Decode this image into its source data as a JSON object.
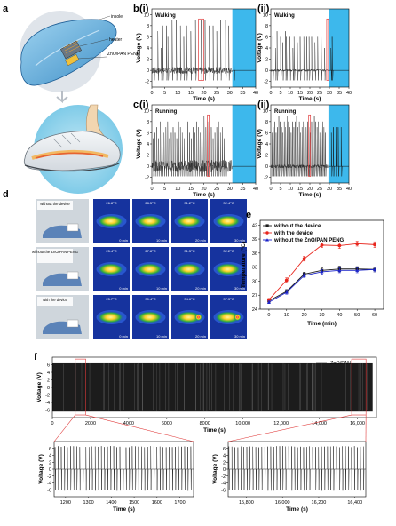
{
  "panels": {
    "a": {
      "label": "a",
      "insole": "insole",
      "heater": "heater",
      "peng": "ZnO/PAN PENG"
    },
    "b": {
      "label": "b",
      "sub1": "(i)",
      "sub2": "(ii)",
      "mode": "Walking"
    },
    "c": {
      "label": "c",
      "sub1": "(i)",
      "sub2": "(ii)",
      "mode": "Running"
    },
    "d": {
      "label": "d",
      "rows": [
        "without the device",
        "without the ZnO/PAN PENG",
        "with the device"
      ],
      "temps": [
        [
          "26.8°C",
          "28.5°C",
          "31.2°C",
          "32.4°C"
        ],
        [
          "25.4°C",
          "27.8°C",
          "31.5°C",
          "32.2°C"
        ],
        [
          "25.7°C",
          "30.4°C",
          "34.6°C",
          "37.3°C"
        ]
      ],
      "times": [
        "0 min",
        "10 min",
        "20 min",
        "30 min"
      ]
    },
    "e": {
      "label": "e"
    },
    "f": {
      "label": "f"
    }
  },
  "chart_data": [
    {
      "id": "b_i",
      "type": "line",
      "title": "Walking",
      "xlabel": "Time (s)",
      "ylabel": "Voltage (V)",
      "xlim": [
        0,
        40
      ],
      "ylim": [
        -3,
        11
      ],
      "xticks": [
        "0",
        "5",
        "10",
        "15",
        "20",
        "25",
        "30",
        "35",
        "40"
      ],
      "yticks": [
        "-2",
        "0",
        "2",
        "4",
        "6",
        "8",
        "10"
      ],
      "peaks": [
        0.8,
        2.3,
        3.6,
        4.2,
        5.6,
        6.2,
        7.8,
        9.4,
        11.0,
        12.3,
        13.4,
        15.0,
        16.8,
        19.0,
        20.5,
        22.1,
        23.6,
        25.0,
        26.5,
        28.4,
        29.6,
        31.6
      ],
      "peak_heights": [
        6,
        7,
        4,
        8,
        8,
        6,
        9,
        9,
        8,
        6,
        8,
        7,
        9,
        9,
        9,
        8,
        8,
        7,
        9,
        9,
        8,
        4
      ],
      "highlight_x": [
        18,
        20
      ],
      "shaded_x": [
        31,
        40
      ],
      "baseline": 0,
      "noise": 1.2
    },
    {
      "id": "b_ii",
      "type": "line",
      "title": "Walking",
      "xlabel": "Time (s)",
      "ylabel": "Voltage (V)",
      "xlim": [
        0,
        40
      ],
      "ylim": [
        -3,
        11
      ],
      "xticks": [
        "0",
        "5",
        "10",
        "15",
        "20",
        "25",
        "30",
        "35",
        "40"
      ],
      "yticks": [
        "-2",
        "0",
        "2",
        "4",
        "6",
        "8",
        "10"
      ],
      "peaks": [
        1.0,
        2.4,
        3.2,
        5.0,
        6.1,
        7.5,
        8.0,
        9.8,
        11.3,
        11.9,
        13.6,
        15.0,
        16.9,
        18.4,
        19.6,
        20.9,
        22.6,
        24.0,
        25.8,
        27.5,
        30.8,
        31.4
      ],
      "peak_heights": [
        6,
        4,
        7,
        6,
        5,
        7,
        6,
        6,
        4,
        6,
        5,
        6,
        6,
        6,
        6,
        6,
        5,
        6,
        6,
        4,
        4,
        6
      ],
      "highlight_x": [
        28.6,
        29.2
      ],
      "shaded_x": [
        30,
        40
      ],
      "baseline": 0,
      "noise": 0.4
    },
    {
      "id": "c_i",
      "type": "line",
      "title": "Running",
      "xlabel": "Time (s)",
      "ylabel": "Voltage (V)",
      "xlim": [
        0,
        40
      ],
      "ylim": [
        -3,
        11
      ],
      "xticks": [
        "0",
        "5",
        "10",
        "15",
        "20",
        "25",
        "30",
        "35",
        "40"
      ],
      "yticks": [
        "-2",
        "0",
        "2",
        "4",
        "6",
        "8",
        "10"
      ],
      "peaks": [
        0.5,
        1.2,
        1.9,
        2.6,
        3.3,
        4.0,
        4.7,
        5.4,
        6.1,
        6.8,
        7.5,
        8.2,
        8.9,
        9.6,
        10.3,
        11.0,
        11.7,
        12.4,
        13.1,
        13.8,
        14.5,
        15.2,
        15.9,
        16.6,
        17.3,
        18.0,
        18.7,
        19.4,
        20.1,
        20.8,
        21.5,
        22.2,
        22.9,
        23.6,
        24.3,
        25.0,
        25.7,
        26.4,
        27.1,
        27.8,
        28.5
      ],
      "peak_heights": [
        5,
        6,
        7,
        5,
        8,
        4,
        6,
        7,
        8,
        5,
        6,
        7,
        6,
        5,
        8,
        7,
        6,
        5,
        7,
        8,
        6,
        5,
        7,
        6,
        8,
        7,
        6,
        5,
        9,
        7,
        8,
        6,
        7,
        5,
        6,
        7,
        8,
        6,
        7,
        5,
        6
      ],
      "highlight_x": [
        21.4,
        22.0
      ],
      "shaded_x": [
        31,
        40
      ],
      "baseline": 0,
      "noise": 2.2
    },
    {
      "id": "c_ii",
      "type": "line",
      "title": "Running",
      "xlabel": "Time (s)",
      "ylabel": "Voltage (V)",
      "xlim": [
        0,
        40
      ],
      "ylim": [
        -3,
        11
      ],
      "xticks": [
        "0",
        "5",
        "10",
        "15",
        "20",
        "25",
        "30",
        "35",
        "40"
      ],
      "yticks": [
        "-2",
        "0",
        "2",
        "4",
        "6",
        "8",
        "10"
      ],
      "peaks": [
        0.6,
        1.3,
        2.0,
        2.7,
        3.4,
        4.1,
        4.8,
        5.5,
        6.2,
        6.9,
        7.6,
        8.3,
        9.0,
        9.7,
        10.4,
        11.1,
        11.8,
        12.5,
        13.2,
        13.9,
        14.6,
        15.3,
        16.0,
        16.7,
        17.4,
        18.1,
        18.8,
        19.5,
        20.2,
        20.9,
        21.6,
        22.3,
        23.0,
        23.7,
        24.4,
        25.1,
        25.8,
        26.5,
        27.2,
        27.9,
        31.0,
        32.0,
        33.3,
        34.5,
        36.0
      ],
      "peak_heights": [
        6,
        7,
        8,
        6,
        7,
        9,
        8,
        7,
        6,
        8,
        7,
        9,
        8,
        7,
        6,
        8,
        7,
        8,
        9,
        7,
        8,
        6,
        7,
        8,
        9,
        7,
        8,
        7,
        6,
        8,
        7,
        9,
        8,
        7,
        8,
        6,
        7,
        8,
        7,
        6,
        6,
        7,
        7,
        7,
        7
      ],
      "highlight_x": [
        19.4,
        20.0
      ],
      "shaded_x": [
        29.5,
        40
      ],
      "baseline": 0,
      "noise": 0.6
    },
    {
      "id": "e",
      "type": "line",
      "xlabel": "Time (min)",
      "ylabel": "Temperature (°C)",
      "x": [
        0,
        10,
        20,
        30,
        40,
        50,
        60
      ],
      "xlim": [
        -5,
        65
      ],
      "ylim": [
        24,
        43
      ],
      "xticks": [
        "0",
        "10",
        "20",
        "30",
        "40",
        "50",
        "60"
      ],
      "yticks": [
        "24",
        "27",
        "30",
        "33",
        "36",
        "39",
        "42"
      ],
      "series": [
        {
          "name": "without the device",
          "color": "#1a1a1a",
          "values": [
            25.8,
            27.8,
            31.5,
            32.3,
            32.6,
            32.6,
            32.5
          ],
          "err": [
            0.3,
            0.4,
            0.4,
            0.5,
            0.6,
            0.5,
            0.5
          ]
        },
        {
          "name": "with the device",
          "color": "#e8261d",
          "values": [
            26.0,
            30.2,
            34.8,
            37.7,
            37.6,
            38.0,
            37.8
          ],
          "err": [
            0.3,
            0.5,
            0.5,
            0.5,
            0.6,
            0.5,
            0.6
          ]
        },
        {
          "name": "without the ZnO/PAN PENG",
          "color": "#1a23c9",
          "values": [
            25.5,
            27.6,
            31.2,
            32.0,
            32.3,
            32.3,
            32.5
          ],
          "err": [
            0.3,
            0.4,
            0.4,
            0.5,
            0.5,
            0.5,
            0.5
          ]
        }
      ]
    },
    {
      "id": "f_main",
      "type": "line",
      "xlabel": "Time (s)",
      "ylabel": "Voltage (V)",
      "legend": "ZnO/PAN",
      "xlim": [
        0,
        17000
      ],
      "ylim": [
        -8,
        8
      ],
      "xticks": [
        "0",
        "2000",
        "4000",
        "6000",
        "8000",
        "10,000",
        "12,000",
        "14,000",
        "16,000"
      ],
      "xtick_values": [
        0,
        2000,
        4000,
        6000,
        8000,
        10000,
        12000,
        14000,
        16000
      ],
      "yticks": [
        "-6",
        "-4",
        "-2",
        "0",
        "2",
        "4",
        "6"
      ],
      "amplitude": [
        6.6,
        -6.4
      ],
      "zoom_boxes": [
        [
          1200,
          1750
        ],
        [
          15700,
          16450
        ]
      ]
    },
    {
      "id": "f_zoom1",
      "type": "line",
      "xlabel": "Time (s)",
      "ylabel": "Voltage (V)",
      "xlim": [
        1150,
        1760
      ],
      "ylim": [
        -8,
        8
      ],
      "xticks": [
        "1200",
        "1300",
        "1400",
        "1500",
        "1600",
        "1700"
      ],
      "xtick_values": [
        1200,
        1300,
        1400,
        1500,
        1600,
        1700
      ],
      "yticks": [
        "-6",
        "-4",
        "-2",
        "0",
        "2",
        "4",
        "6"
      ],
      "amplitude": [
        6.7,
        -6.3
      ],
      "period": 13.5
    },
    {
      "id": "f_zoom2",
      "type": "line",
      "xlabel": "Time (s)",
      "ylabel": "Voltage (V)",
      "xlim": [
        15700,
        16460
      ],
      "ylim": [
        -8,
        8
      ],
      "xticks": [
        "15,800",
        "16,000",
        "16,200",
        "16,400"
      ],
      "xtick_values": [
        15800,
        16000,
        16200,
        16400
      ],
      "yticks": [
        "-6",
        "-4",
        "-2",
        "0",
        "2",
        "4",
        "6"
      ],
      "amplitude": [
        6.7,
        -6.3
      ],
      "period": 16.5
    }
  ]
}
